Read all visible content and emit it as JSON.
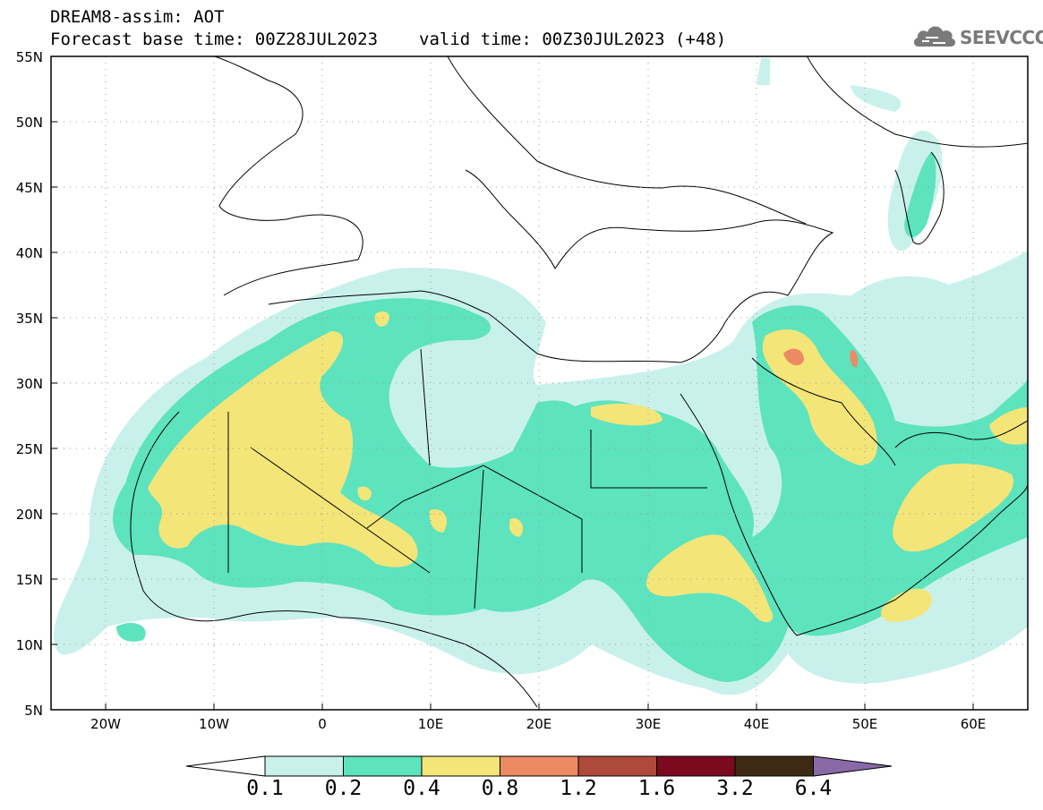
{
  "header": {
    "title": "DREAM8-assim: AOT",
    "base_time": "Forecast base time: 00Z28JUL2023",
    "valid_time": "valid time: 00Z30JUL2023 (+48)"
  },
  "logo": {
    "text": "SEEVCCC",
    "icon": "cloud-icon"
  },
  "map": {
    "field": "AOT",
    "lat_labels": [
      "55N",
      "50N",
      "45N",
      "40N",
      "35N",
      "30N",
      "25N",
      "20N",
      "15N",
      "10N",
      "5N"
    ],
    "lon_labels": [
      "20W",
      "10W",
      "0",
      "10E",
      "20E",
      "30E",
      "40E",
      "50E",
      "60E"
    ],
    "lat_range": [
      5,
      55
    ],
    "lon_range": [
      -25,
      65
    ],
    "grid": "dotted",
    "colors": {
      "land_outline": "#000000",
      "level_0_1": "#c9f1ec",
      "level_0_2": "#5de3be",
      "level_0_4": "#f4e579",
      "level_0_8": "#eb8a63"
    }
  },
  "colorbar": {
    "labels": [
      "0.1",
      "0.2",
      "0.4",
      "0.8",
      "1.2",
      "1.6",
      "3.2",
      "6.4"
    ],
    "colors": [
      "#ffffff",
      "#c9f1ec",
      "#5de3be",
      "#f4e579",
      "#eb8a63",
      "#ad4a3a",
      "#7b0a1f",
      "#3e2a14",
      "#8a69a8"
    ]
  }
}
